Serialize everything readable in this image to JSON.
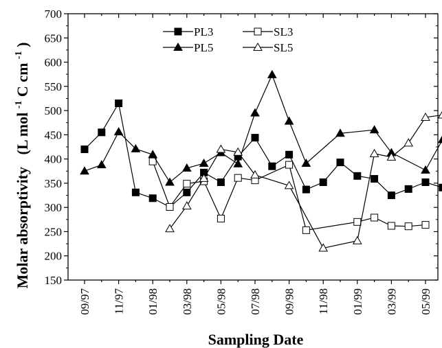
{
  "chart_data": {
    "type": "line",
    "xlabel": "Sampling Date",
    "ylabel_main": "Molar absorptivity",
    "ylabel_units": "(L mol",
    "ylabel_sup1": "-1",
    "ylabel_mid": "C cm",
    "ylabel_sup2": "-1",
    "ylabel_close": ")",
    "ylim": [
      150,
      700
    ],
    "yticks": [
      "150",
      "200",
      "250",
      "300",
      "350",
      "400",
      "450",
      "500",
      "550",
      "600",
      "650",
      "700"
    ],
    "xlim": [
      0,
      22
    ],
    "xticks": [
      {
        "x": 0,
        "label": "09/97"
      },
      {
        "x": 2,
        "label": "11/97"
      },
      {
        "x": 4,
        "label": "01/98"
      },
      {
        "x": 6,
        "label": "03/98"
      },
      {
        "x": 8,
        "label": "05/98"
      },
      {
        "x": 10,
        "label": "07/98"
      },
      {
        "x": 12,
        "label": "09/98"
      },
      {
        "x": 14,
        "label": "11/98"
      },
      {
        "x": 16,
        "label": "01/99"
      },
      {
        "x": 18,
        "label": "03/99"
      },
      {
        "x": 20,
        "label": "05/99"
      },
      {
        "x": 22,
        "label": "07/99"
      }
    ],
    "legend_position": "top-center",
    "series": [
      {
        "name": "PL3",
        "marker": "square-filled",
        "x": [
          0,
          1,
          2,
          3,
          4,
          5,
          6,
          7,
          8,
          9,
          10,
          11,
          12,
          13,
          14,
          15,
          16,
          17,
          18,
          19,
          20,
          21
        ],
        "y": [
          420,
          455,
          515,
          331,
          319,
          301,
          331,
          372,
          352,
          405,
          444,
          385,
          409,
          337,
          352,
          393,
          365,
          359,
          325,
          338,
          352,
          341
        ]
      },
      {
        "name": "SL3",
        "marker": "square-open",
        "x": [
          4,
          5,
          6,
          7,
          8,
          9,
          10,
          12,
          13,
          16,
          17,
          18,
          19,
          20
        ],
        "y": [
          395,
          301,
          349,
          354,
          277,
          361,
          356,
          388,
          253,
          270,
          279,
          262,
          261,
          264
        ]
      },
      {
        "name": "PL5",
        "marker": "triangle-filled",
        "x": [
          0,
          1,
          2,
          3,
          4,
          5,
          6,
          7,
          8,
          9,
          10,
          11,
          12,
          13,
          15,
          17,
          18,
          20,
          21
        ],
        "y": [
          375,
          388,
          456,
          421,
          409,
          352,
          381,
          391,
          413,
          390,
          495,
          574,
          478,
          391,
          453,
          460,
          413,
          377,
          440
        ]
      },
      {
        "name": "SL5",
        "marker": "triangle-open",
        "x": [
          5,
          6,
          7,
          8,
          9,
          10,
          12,
          14,
          16,
          17,
          18,
          19,
          20,
          21,
          22
        ],
        "y": [
          256,
          303,
          360,
          420,
          414,
          367,
          345,
          216,
          231,
          411,
          404,
          433,
          486,
          491,
          463
        ]
      }
    ]
  }
}
